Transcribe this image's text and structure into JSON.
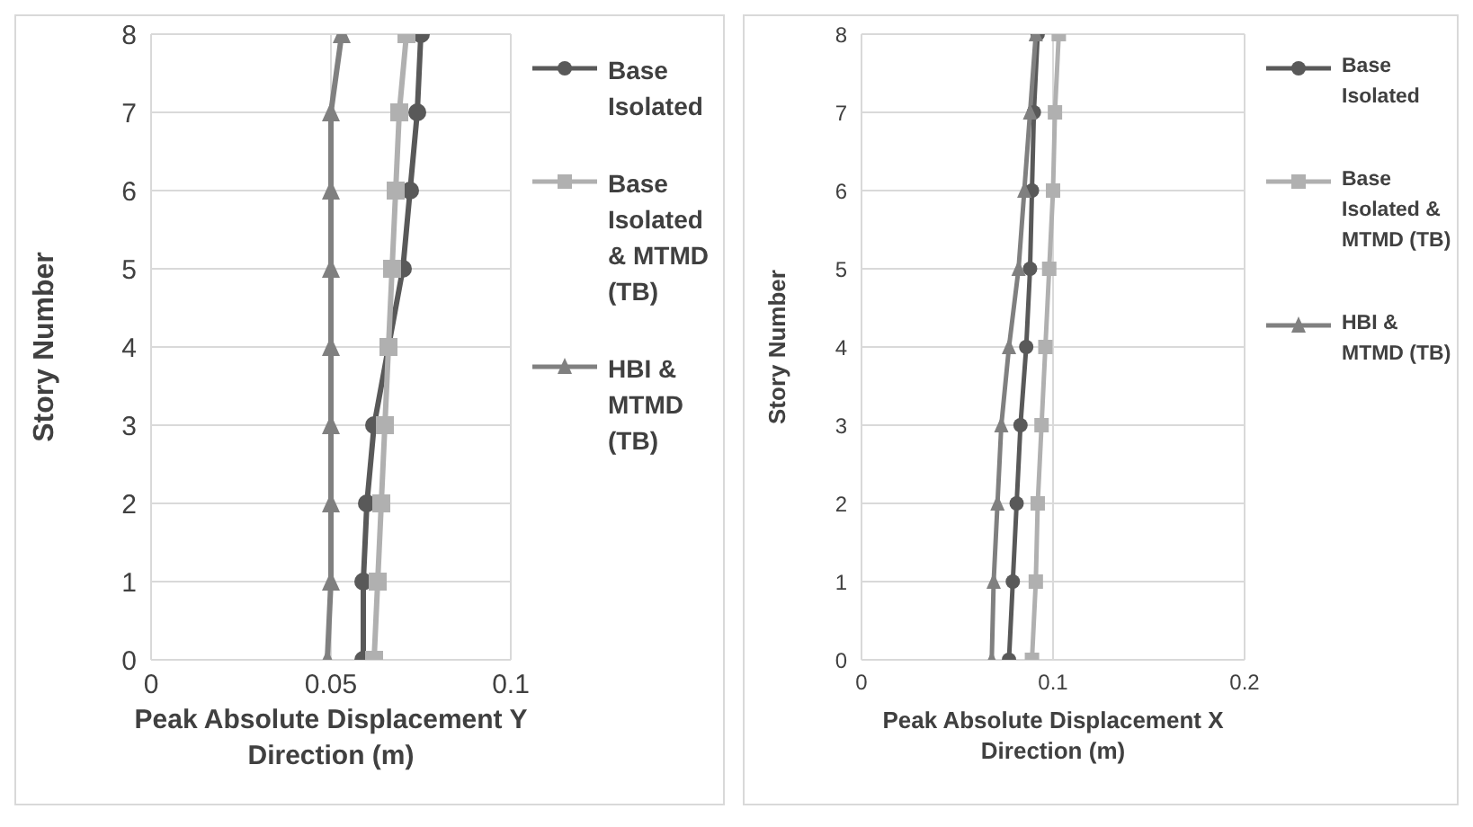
{
  "chart_data": [
    {
      "type": "line",
      "xlabel": "Peak Absolute Displacement Y Direction (m)",
      "ylabel": "Story Number",
      "xlim": [
        0,
        0.1
      ],
      "xticks": [
        0,
        0.05,
        0.1
      ],
      "ylim": [
        0,
        8
      ],
      "yticks": [
        0,
        1,
        2,
        3,
        4,
        5,
        6,
        7,
        8
      ],
      "grid": true,
      "legend": "right",
      "series": [
        {
          "name": "Base Isolated",
          "color": "#595959",
          "marker": "circle",
          "x": [
            0.059,
            0.059,
            0.06,
            0.062,
            0.066,
            0.07,
            0.072,
            0.074,
            0.075
          ],
          "values": [
            0,
            1,
            2,
            3,
            4,
            5,
            6,
            7,
            8
          ]
        },
        {
          "name": "Base Isolated & MTMD (TB)",
          "color": "#b0b0b0",
          "marker": "square",
          "x": [
            0.062,
            0.063,
            0.064,
            0.065,
            0.066,
            0.067,
            0.068,
            0.069,
            0.071
          ],
          "values": [
            0,
            1,
            2,
            3,
            4,
            5,
            6,
            7,
            8
          ]
        },
        {
          "name": "HBI & MTMD (TB)",
          "color": "#808080",
          "marker": "triangle",
          "x": [
            0.049,
            0.05,
            0.05,
            0.05,
            0.05,
            0.05,
            0.05,
            0.05,
            0.053
          ],
          "values": [
            0,
            1,
            2,
            3,
            4,
            5,
            6,
            7,
            8
          ]
        }
      ]
    },
    {
      "type": "line",
      "xlabel": "Peak Absolute Displacement X Direction (m)",
      "ylabel": "Story Number",
      "xlim": [
        0,
        0.2
      ],
      "xticks": [
        0,
        0.1,
        0.2
      ],
      "ylim": [
        0,
        8
      ],
      "yticks": [
        0,
        1,
        2,
        3,
        4,
        5,
        6,
        7,
        8
      ],
      "grid": true,
      "legend": "right",
      "series": [
        {
          "name": "Base Isolated",
          "color": "#595959",
          "marker": "circle",
          "x": [
            0.077,
            0.079,
            0.081,
            0.083,
            0.086,
            0.088,
            0.089,
            0.09,
            0.092
          ],
          "values": [
            0,
            1,
            2,
            3,
            4,
            5,
            6,
            7,
            8
          ]
        },
        {
          "name": "Base Isolated & MTMD (TB)",
          "color": "#b0b0b0",
          "marker": "square",
          "x": [
            0.089,
            0.091,
            0.092,
            0.094,
            0.096,
            0.098,
            0.1,
            0.101,
            0.103
          ],
          "values": [
            0,
            1,
            2,
            3,
            4,
            5,
            6,
            7,
            8
          ]
        },
        {
          "name": "HBI & MTMD (TB)",
          "color": "#808080",
          "marker": "triangle",
          "x": [
            0.068,
            0.069,
            0.071,
            0.073,
            0.077,
            0.082,
            0.085,
            0.088,
            0.091
          ],
          "values": [
            0,
            1,
            2,
            3,
            4,
            5,
            6,
            7,
            8
          ]
        }
      ]
    }
  ]
}
